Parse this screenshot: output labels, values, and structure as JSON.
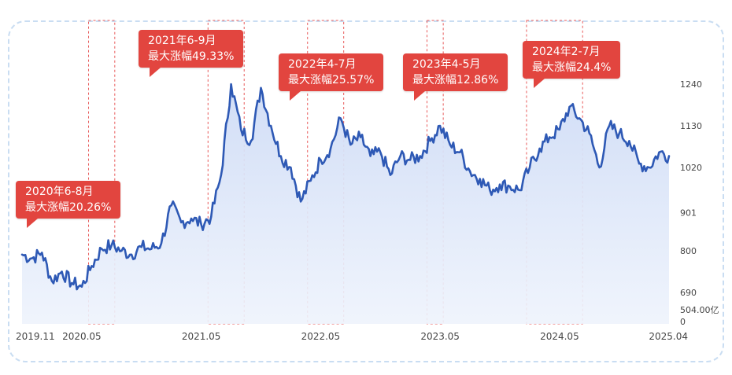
{
  "chart_data": {
    "type": "area",
    "x_tick_labels": [
      "2019.11",
      "2020.05",
      "2021.05",
      "2022.05",
      "2023.05",
      "2024.05",
      "2025.04"
    ],
    "y_tick_labels": [
      "1240",
      "1130",
      "1020",
      "901",
      "800",
      "690",
      "504.00亿",
      "0"
    ],
    "y_ticks": [
      1240,
      1130,
      1020,
      901,
      800,
      690
    ],
    "y_range": [
      560,
      1280
    ],
    "x_range": [
      "2019-11",
      "2025-04"
    ],
    "series": [
      {
        "x": [
          "2019-11",
          "2019-12",
          "2020-01",
          "2020-02",
          "2020-03",
          "2020-04",
          "2020-05",
          "2020-06",
          "2020-07",
          "2020-08",
          "2020-09",
          "2020-10",
          "2020-11",
          "2020-12",
          "2021-01",
          "2021-02",
          "2021-03",
          "2021-04",
          "2021-05",
          "2021-06",
          "2021-07",
          "2021-08",
          "2021-09",
          "2021-10",
          "2021-11",
          "2021-12",
          "2022-01",
          "2022-02",
          "2022-03",
          "2022-04",
          "2022-05",
          "2022-06",
          "2022-07",
          "2022-08",
          "2022-09",
          "2022-10",
          "2022-11",
          "2022-12",
          "2023-01",
          "2023-02",
          "2023-03",
          "2023-04",
          "2023-05",
          "2023-06",
          "2023-07",
          "2023-08",
          "2023-09",
          "2023-10",
          "2023-11",
          "2023-12",
          "2024-01",
          "2024-02",
          "2024-03",
          "2024-04",
          "2024-05",
          "2024-06",
          "2024-07",
          "2024-08",
          "2024-09",
          "2024-10",
          "2024-11",
          "2024-12",
          "2025-01",
          "2025-02",
          "2025-03",
          "2025-04"
        ],
        "values": [
          790,
          780,
          795,
          720,
          745,
          715,
          705,
          760,
          805,
          815,
          800,
          790,
          810,
          805,
          820,
          920,
          875,
          885,
          870,
          890,
          1000,
          1240,
          1120,
          1090,
          1230,
          1130,
          1050,
          1020,
          930,
          985,
          1040,
          1070,
          1150,
          1080,
          1100,
          1050,
          1060,
          1000,
          1050,
          1040,
          1050,
          1090,
          1130,
          1080,
          1060,
          1010,
          990,
          960,
          975,
          970,
          960,
          1020,
          1070,
          1100,
          1120,
          1180,
          1150,
          1110,
          1020,
          1130,
          1110,
          1090,
          1030,
          1020,
          1060,
          1050
        ]
      }
    ],
    "highlight_periods": [
      {
        "start": "2020-06",
        "end": "2020-08",
        "label_line1": "2020年6-8月",
        "label_line2": "最大涨幅20.26%"
      },
      {
        "start": "2021-06",
        "end": "2021-09",
        "label_line1": "2021年6-9月",
        "label_line2": "最大涨幅49.33%"
      },
      {
        "start": "2022-04",
        "end": "2022-07",
        "label_line1": "2022年4-7月",
        "label_line2": "最大涨幅25.57%"
      },
      {
        "start": "2023-04",
        "end": "2023-05",
        "label_line1": "2023年4-5月",
        "label_line2": "最大涨幅12.86%"
      },
      {
        "start": "2024-02",
        "end": "2024-07",
        "label_line1": "2024年2-7月",
        "label_line2": "最大涨幅24.4%"
      }
    ],
    "grid": false,
    "colors": {
      "line": "#2e59b5",
      "area_top": "#cfdcf6",
      "area_bottom": "#eef3fc",
      "highlight_border": "#e85a5a",
      "callout_bg": "#e2453f",
      "frame_border": "#c9ddf2",
      "axis_text": "#444444"
    }
  }
}
